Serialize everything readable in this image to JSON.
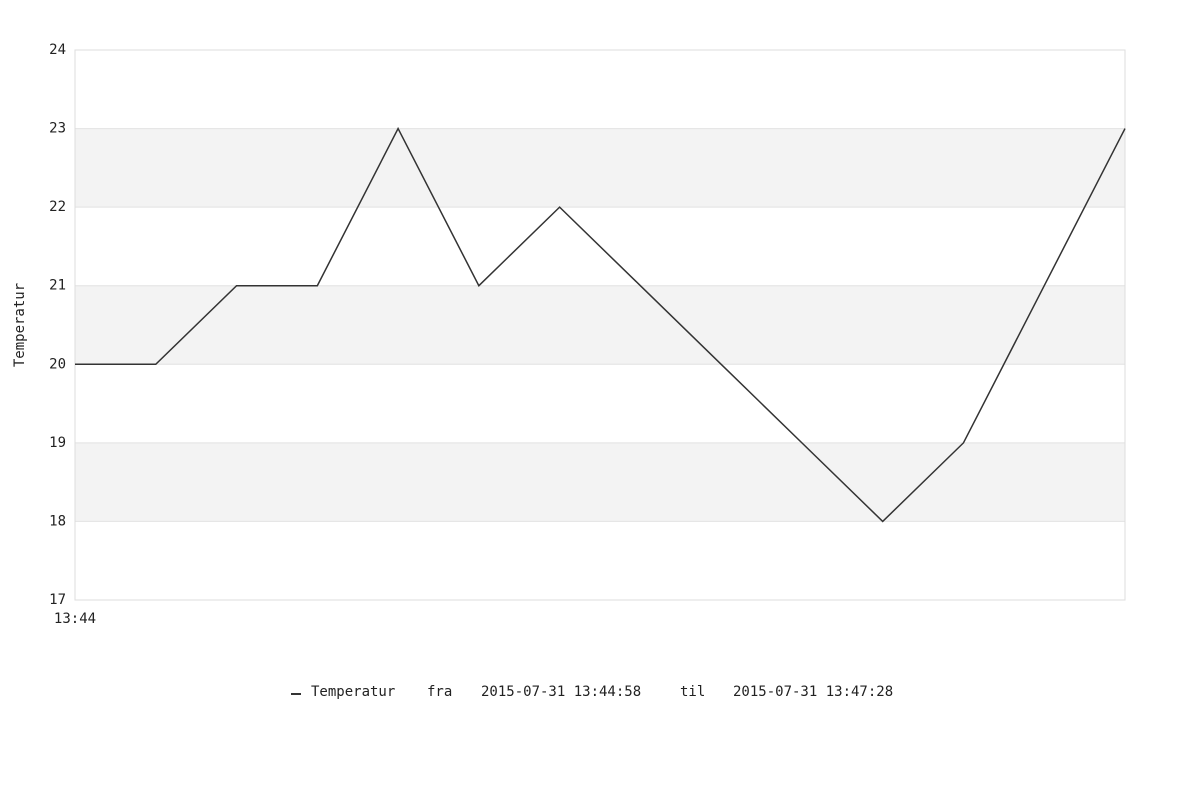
{
  "chart_data": {
    "type": "line",
    "y_label": "Temperatur",
    "categories": [
      "13:44",
      null,
      null,
      null,
      null,
      null,
      null,
      null,
      null,
      null,
      null,
      null,
      null,
      null
    ],
    "series": [
      {
        "name": "Temperatur",
        "color": "#333333",
        "values": [
          20,
          20,
          21,
          21,
          23,
          21,
          22,
          21,
          20,
          19,
          18,
          19,
          21,
          23
        ]
      }
    ],
    "ylim": [
      17,
      24
    ],
    "yticks": [
      17,
      18,
      19,
      20,
      21,
      22,
      23,
      24
    ],
    "grid": true,
    "alternating_bands": true,
    "legend": {
      "from_label": "fra",
      "from": "2015-07-31 13:44:58",
      "to_label": "til",
      "to": "2015-07-31 13:47:28"
    }
  }
}
